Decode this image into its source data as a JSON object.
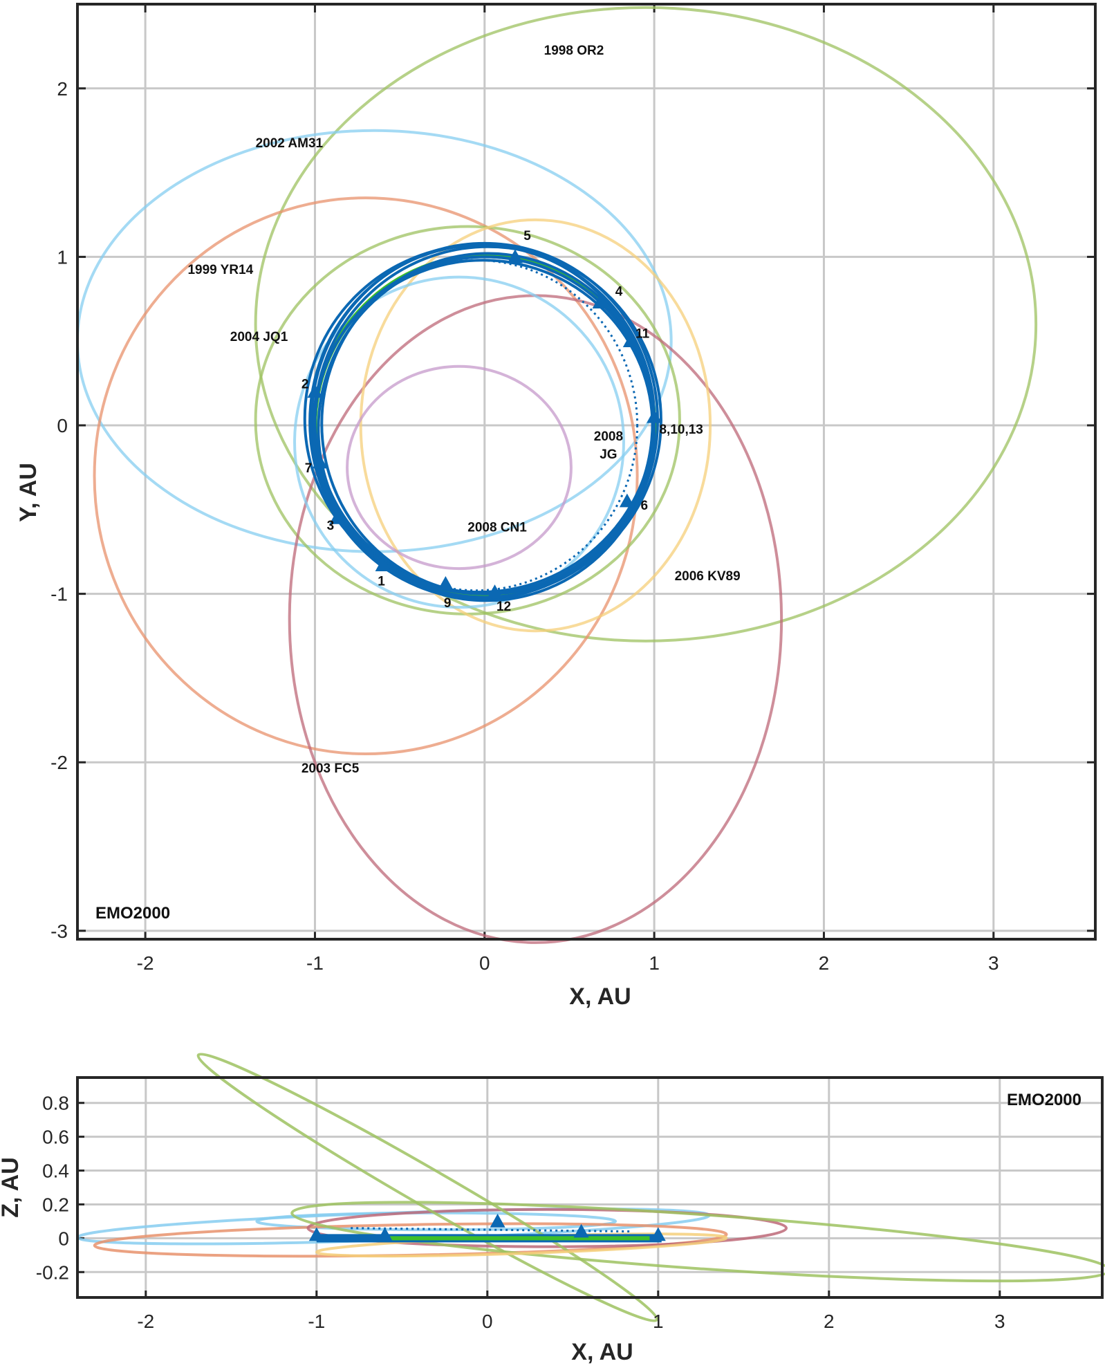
{
  "colors": {
    "trajectory": "#0b68b3",
    "earth": "#3dbf2a",
    "grid": "#c8c8c8",
    "axis": "#262626",
    "1998 OR2": "#9dc260",
    "2002 AM31": "#86cdf0",
    "1999 YR14": "#e8926c",
    "2004 JQ1": "#9dc260",
    "2003 FC5": "#bd6878",
    "2006 KV89": "#f5cf7a",
    "2008 CN1": "#c59acb",
    "2008 JG": "#86cdf0"
  },
  "chart_data": [
    {
      "type": "line",
      "title": "",
      "xlabel": "X, AU",
      "ylabel": "Y, AU",
      "xlim": [
        -2.4,
        3.6
      ],
      "ylim": [
        -3.05,
        2.5
      ],
      "xticks": [
        "-2",
        "-1",
        "0",
        "1",
        "2",
        "3"
      ],
      "yticks": [
        "-3",
        "-2",
        "-1",
        "0",
        "1",
        "2"
      ],
      "grid": true,
      "frame_label": "EMO2000",
      "asteroid_orbits": [
        {
          "name": "1998 OR2",
          "center": [
            0.95,
            0.6
          ],
          "a": 2.3,
          "b": 1.88,
          "label_pos": [
            0.35,
            2.2
          ]
        },
        {
          "name": "2002 AM31",
          "center": [
            -0.65,
            0.5
          ],
          "a": 1.75,
          "b": 1.25,
          "label_pos": [
            -1.35,
            1.65
          ]
        },
        {
          "name": "1999 YR14",
          "center": [
            -0.7,
            -0.3
          ],
          "a": 1.6,
          "b": 1.65,
          "label_pos": [
            -1.75,
            0.9
          ]
        },
        {
          "name": "2004 JQ1",
          "center": [
            -0.1,
            0.03
          ],
          "a": 1.25,
          "b": 1.15,
          "label_pos": [
            -1.5,
            0.5
          ]
        },
        {
          "name": "2003 FC5",
          "center": [
            0.3,
            -1.15
          ],
          "a": 1.45,
          "b": 1.92,
          "label_pos": [
            -1.08,
            -2.06
          ]
        },
        {
          "name": "2006 KV89",
          "center": [
            0.3,
            0.0
          ],
          "a": 1.03,
          "b": 1.22,
          "label_pos": [
            1.12,
            -0.92
          ]
        },
        {
          "name": "2008 CN1",
          "center": [
            -0.15,
            -0.25
          ],
          "a": 0.66,
          "b": 0.6,
          "label_pos": [
            -0.1,
            -0.63
          ]
        },
        {
          "name": "2008 JG",
          "center": [
            -0.15,
            -0.1
          ],
          "a": 0.97,
          "b": 0.98,
          "label_pos": [
            0.73,
            -0.09
          ]
        }
      ],
      "earth_orbit": {
        "name": "Earth",
        "radius": 1.0
      },
      "markers": [
        {
          "label": "1",
          "x": -0.6,
          "y": -0.83,
          "label_pos": [
            -0.63,
            -0.95
          ]
        },
        {
          "label": "2",
          "x": -1.0,
          "y": 0.2,
          "label_pos": [
            -1.08,
            0.22
          ]
        },
        {
          "label": "3",
          "x": -0.87,
          "y": -0.55,
          "label_pos": [
            -0.93,
            -0.62
          ]
        },
        {
          "label": "4",
          "x": 0.68,
          "y": 0.73,
          "label_pos": [
            0.77,
            0.77
          ]
        },
        {
          "label": "5",
          "x": 0.18,
          "y": 1.0,
          "label_pos": [
            0.23,
            1.1
          ]
        },
        {
          "label": "6",
          "x": 0.84,
          "y": -0.45,
          "label_pos": [
            0.92,
            -0.5
          ]
        },
        {
          "label": "7",
          "x": -0.97,
          "y": -0.22,
          "label_pos": [
            -1.06,
            -0.28
          ]
        },
        {
          "label": "8,10,13",
          "x": 1.0,
          "y": 0.05,
          "label_pos": [
            1.03,
            -0.05
          ]
        },
        {
          "label": "9",
          "x": -0.23,
          "y": -0.94,
          "label_pos": [
            -0.24,
            -1.08
          ]
        },
        {
          "label": "11",
          "x": 0.86,
          "y": 0.5,
          "label_pos": [
            0.89,
            0.52
          ]
        },
        {
          "label": "12",
          "x": 0.06,
          "y": -0.99,
          "label_pos": [
            0.07,
            -1.1
          ]
        }
      ]
    },
    {
      "type": "line",
      "title": "",
      "xlabel": "X, AU",
      "ylabel": "Z, AU",
      "xlim": [
        -2.4,
        3.6
      ],
      "ylim": [
        -0.35,
        0.95
      ],
      "xticks": [
        "-2",
        "-1",
        "0",
        "1",
        "2",
        "3"
      ],
      "yticks": [
        "-0.2",
        "0",
        "0.2",
        "0.4",
        "0.6",
        "0.8"
      ],
      "grid": true,
      "frame_label": "EMO2000"
    }
  ]
}
